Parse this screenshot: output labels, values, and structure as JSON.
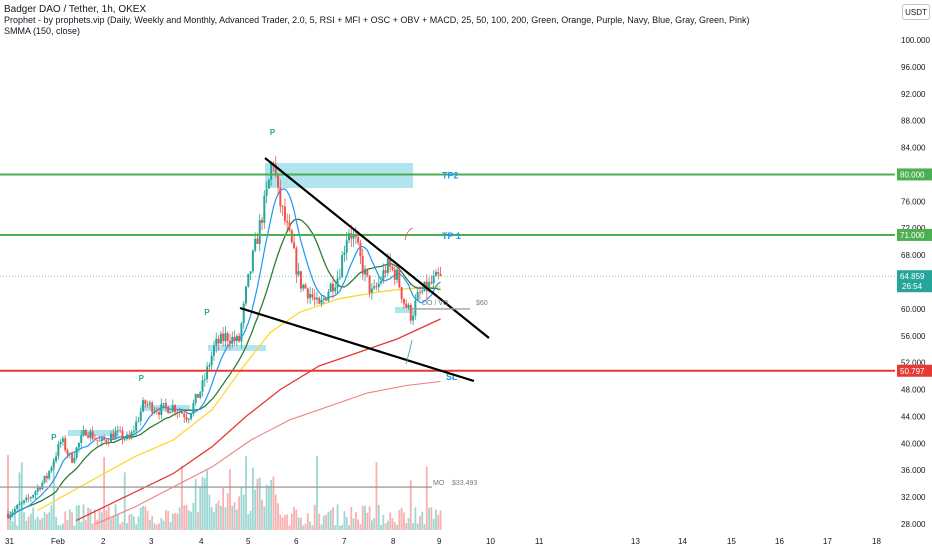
{
  "header": {
    "title": "Badger DAO / Tether, 1h, OKEX",
    "indicator1": "Prophet - by prophets.vip (Daily, Weekly and Monthly, Advanced Trader, 2.0, 5, RSI + MFI + OSC + OBV + MACD, 25, 50, 100, 200, Green, Orange, Purple, Navy, Blue, Gray, Green, Pink)",
    "indicator2": "SMMA (150, close)"
  },
  "currency_button": "USDT",
  "colors": {
    "bull": "#26a69a",
    "bear": "#ef5350",
    "tp_line": "#4caf50",
    "sl_line": "#e53935",
    "zone": "#8fd8e8",
    "trend": "#000000",
    "label_blue": "#2196f3"
  },
  "chart_data": {
    "type": "candlestick",
    "pair": "Badger DAO / Tether",
    "timeframe": "1h",
    "exchange": "OKEX",
    "x_ticks": [
      "31",
      "Feb",
      "2",
      "3",
      "4",
      "5",
      "6",
      "7",
      "8",
      "9",
      "10",
      "11",
      "13",
      "14",
      "15",
      "16",
      "17",
      "18"
    ],
    "y_ticks": [
      "100.000",
      "96.000",
      "92.000",
      "88.000",
      "84.000",
      "80.000",
      "76.000",
      "72.000",
      "68.000",
      "64.000",
      "60.000",
      "56.000",
      "52.000",
      "48.000",
      "44.000",
      "40.000",
      "36.000",
      "32.000",
      "28.000"
    ],
    "ylim": [
      27,
      103
    ],
    "levels": [
      {
        "name": "TP2",
        "price": 80.0,
        "price_label": "80.000"
      },
      {
        "name": "TP 1",
        "price": 71.0,
        "price_label": "71.000"
      },
      {
        "name": "SL",
        "price": 50.797,
        "price_label": "50.797"
      }
    ],
    "current_price": {
      "value": 64.859,
      "label": "64.859",
      "countdown": "26:54"
    },
    "annotations": {
      "do": "DO / VO",
      "do_value": "$60",
      "mo": "MO",
      "mo_value": "$33.493"
    },
    "pivot_label": "P",
    "pivots": [
      {
        "day": 0.95,
        "price": 39.6
      },
      {
        "day": 2.75,
        "price": 48.4
      },
      {
        "day": 4.1,
        "price": 58.2
      },
      {
        "day": 5.45,
        "price": 85.0
      }
    ],
    "close_path": [
      [
        0.0,
        29.5
      ],
      [
        0.4,
        31.5
      ],
      [
        0.8,
        35.0
      ],
      [
        1.1,
        40.5
      ],
      [
        1.3,
        37.5
      ],
      [
        1.6,
        42.0
      ],
      [
        1.9,
        40.0
      ],
      [
        2.2,
        41.5
      ],
      [
        2.5,
        40.5
      ],
      [
        2.8,
        46.0
      ],
      [
        3.1,
        45.0
      ],
      [
        3.4,
        45.5
      ],
      [
        3.7,
        44.0
      ],
      [
        4.0,
        48.5
      ],
      [
        4.25,
        54.5
      ],
      [
        4.5,
        56.0
      ],
      [
        4.75,
        55.0
      ],
      [
        4.9,
        62.5
      ],
      [
        5.05,
        68.0
      ],
      [
        5.2,
        73.0
      ],
      [
        5.35,
        78.0
      ],
      [
        5.45,
        83.0
      ],
      [
        5.55,
        77.0
      ],
      [
        5.7,
        73.0
      ],
      [
        5.85,
        69.0
      ],
      [
        6.0,
        64.0
      ],
      [
        6.2,
        62.5
      ],
      [
        6.4,
        60.0
      ],
      [
        6.6,
        63.0
      ],
      [
        6.8,
        65.0
      ],
      [
        7.0,
        72.0
      ],
      [
        7.15,
        70.0
      ],
      [
        7.3,
        66.0
      ],
      [
        7.5,
        62.0
      ],
      [
        7.65,
        64.0
      ],
      [
        7.8,
        66.5
      ],
      [
        8.0,
        65.0
      ],
      [
        8.15,
        61.0
      ],
      [
        8.3,
        59.0
      ],
      [
        8.45,
        62.0
      ],
      [
        8.6,
        63.0
      ],
      [
        8.75,
        64.0
      ],
      [
        8.9,
        64.859
      ]
    ],
    "series": [
      {
        "name": "Price",
        "color": "#26a69a"
      }
    ]
  }
}
